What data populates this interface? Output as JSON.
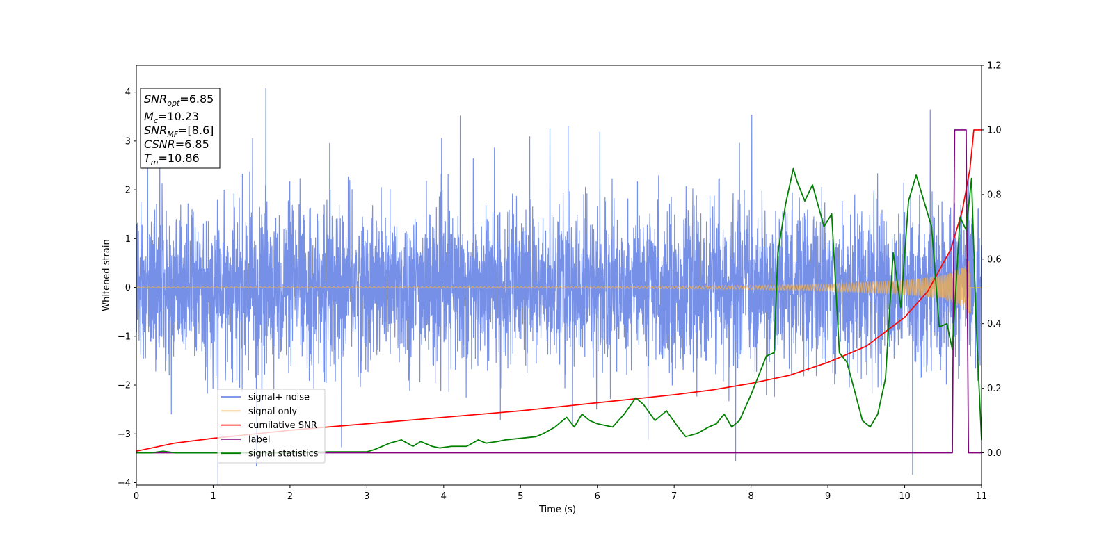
{
  "chart_data": {
    "type": "line",
    "xlabel": "Time (s)",
    "ylabel": "Whitened strain",
    "xlim": [
      0,
      11
    ],
    "ylim_left": [
      -4.05,
      4.55
    ],
    "ylim_right": [
      -0.1,
      1.2
    ],
    "x_ticks": [
      0,
      1,
      2,
      3,
      4,
      5,
      6,
      7,
      8,
      9,
      10,
      11
    ],
    "y_ticks_left": [
      -4,
      -3,
      -2,
      -1,
      0,
      1,
      2,
      3,
      4
    ],
    "y_ticks_right": [
      0.0,
      0.2,
      0.4,
      0.6,
      0.8,
      1.0,
      1.2
    ],
    "x_tick_labels": [
      "0",
      "1",
      "2",
      "3",
      "4",
      "5",
      "6",
      "7",
      "8",
      "9",
      "10",
      "11"
    ],
    "y_tick_labels_left": [
      "−4",
      "−3",
      "−2",
      "−1",
      "0",
      "1",
      "2",
      "3",
      "4"
    ],
    "y_tick_labels_right": [
      "0.0",
      "0.2",
      "0.4",
      "0.6",
      "0.8",
      "1.0",
      "1.2"
    ],
    "grid": false,
    "legend_position": "lower-left",
    "series": [
      {
        "name": "signal+ noise",
        "axis": "left",
        "color": "#6f8ae6",
        "description_values": "dense noise band, typical range ±1.5, peaks near ±2.5, spikes up to 4.2 and down to −3.6",
        "x_range": [
          0,
          11
        ],
        "noise_sigma": 0.8
      },
      {
        "name": "signal only",
        "axis": "left",
        "color": "#f5b04a",
        "x_range": [
          0,
          11
        ],
        "envelope": {
          "x": [
            0,
            4,
            6,
            8,
            9,
            10,
            10.5,
            10.8,
            10.86
          ],
          "amp": [
            0.01,
            0.015,
            0.02,
            0.04,
            0.07,
            0.15,
            0.25,
            0.45,
            0.6
          ]
        }
      },
      {
        "name": "cumilative SNR",
        "axis": "right",
        "color": "#ff0000",
        "x": [
          0,
          0.5,
          1,
          2,
          3,
          4,
          5,
          6,
          7,
          7.5,
          8,
          8.5,
          9,
          9.5,
          10,
          10.3,
          10.6,
          10.75,
          10.85,
          10.9,
          11
        ],
        "values": [
          0.005,
          0.03,
          0.045,
          0.07,
          0.09,
          0.11,
          0.13,
          0.155,
          0.18,
          0.195,
          0.215,
          0.24,
          0.28,
          0.33,
          0.42,
          0.5,
          0.63,
          0.75,
          0.88,
          1.0,
          1.0
        ]
      },
      {
        "name": "label",
        "axis": "right",
        "color": "#800080",
        "x": [
          0,
          10.62,
          10.65,
          10.8,
          10.83,
          10.86,
          10.89,
          11
        ],
        "values": [
          0.0,
          0.0,
          1.0,
          1.0,
          0.0,
          0.0,
          0.0,
          0.0
        ]
      },
      {
        "name": "signal statistics",
        "axis": "right",
        "color": "#008000",
        "x": [
          0,
          0.2,
          0.35,
          0.5,
          1,
          2,
          2.5,
          3,
          3.1,
          3.3,
          3.45,
          3.6,
          3.7,
          3.85,
          3.95,
          4.1,
          4.3,
          4.45,
          4.55,
          4.7,
          4.8,
          5.0,
          5.2,
          5.3,
          5.45,
          5.6,
          5.7,
          5.8,
          5.9,
          6.0,
          6.2,
          6.35,
          6.5,
          6.6,
          6.75,
          6.9,
          7.05,
          7.15,
          7.3,
          7.45,
          7.55,
          7.65,
          7.75,
          7.85,
          8.0,
          8.1,
          8.2,
          8.3,
          8.35,
          8.45,
          8.55,
          8.6,
          8.7,
          8.8,
          8.95,
          9.05,
          9.15,
          9.25,
          9.45,
          9.55,
          9.65,
          9.75,
          9.85,
          9.95,
          10.05,
          10.15,
          10.25,
          10.35,
          10.45,
          10.55,
          10.62,
          10.72,
          10.8,
          10.87,
          10.93,
          11.0
        ],
        "values": [
          0.0,
          0.0,
          0.005,
          0.0,
          0.0,
          0.0,
          0.003,
          0.003,
          0.01,
          0.03,
          0.04,
          0.02,
          0.035,
          0.02,
          0.015,
          0.02,
          0.02,
          0.04,
          0.03,
          0.035,
          0.04,
          0.045,
          0.05,
          0.06,
          0.08,
          0.11,
          0.08,
          0.12,
          0.1,
          0.09,
          0.08,
          0.12,
          0.17,
          0.15,
          0.1,
          0.13,
          0.08,
          0.05,
          0.06,
          0.08,
          0.09,
          0.12,
          0.08,
          0.1,
          0.18,
          0.24,
          0.3,
          0.31,
          0.62,
          0.77,
          0.88,
          0.84,
          0.78,
          0.83,
          0.7,
          0.74,
          0.31,
          0.28,
          0.1,
          0.08,
          0.12,
          0.23,
          0.62,
          0.45,
          0.78,
          0.86,
          0.78,
          0.7,
          0.39,
          0.4,
          0.32,
          0.73,
          0.69,
          0.85,
          0.4,
          0.04
        ]
      }
    ],
    "annotation_box": {
      "position": "upper-left",
      "lines": [
        {
          "sym": "SNR",
          "sub": "opt",
          "val": "=6.85"
        },
        {
          "sym": "M",
          "sub": "c",
          "val": "=10.23"
        },
        {
          "sym": "SNR",
          "sub": "MF",
          "val": "=[8.6]"
        },
        {
          "sym": "CSNR",
          "sub": "",
          "val": "=6.85"
        },
        {
          "sym": "T",
          "sub": "m",
          "val": "=10.86"
        }
      ]
    }
  }
}
